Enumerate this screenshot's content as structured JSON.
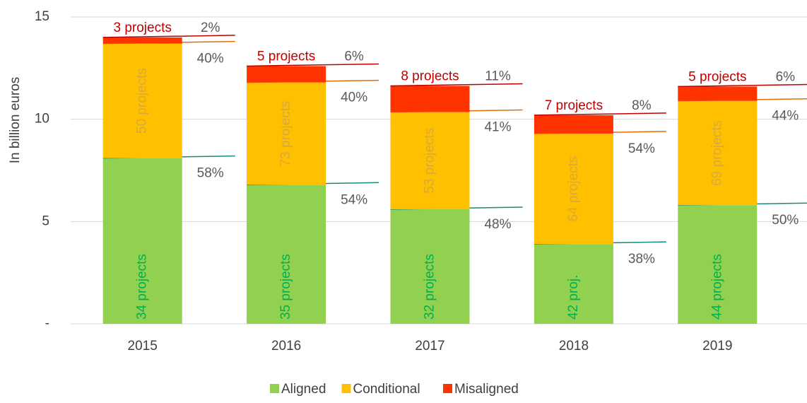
{
  "chart_data": {
    "type": "stacked_bar",
    "y_axis_label": "In billion euros",
    "categories": [
      "2015",
      "2016",
      "2017",
      "2018",
      "2019"
    ],
    "series": [
      {
        "name": "Aligned",
        "color": "#92d050",
        "values": [
          8.1,
          6.8,
          5.6,
          3.9,
          5.8
        ],
        "project_labels": [
          "34 projects",
          "35 projects",
          "32 projects",
          "42 proj.",
          "44 projects"
        ],
        "share_labels": [
          "58%",
          "54%",
          "48%",
          "38%",
          "50%"
        ]
      },
      {
        "name": "Conditional",
        "color": "#ffc000",
        "values": [
          5.6,
          5.0,
          4.75,
          5.4,
          5.1
        ],
        "project_labels": [
          "50 projects",
          "73 projects",
          "53 projects",
          "64 projects",
          "69 projects"
        ],
        "share_labels": [
          "40%",
          "40%",
          "41%",
          "54%",
          "44%"
        ]
      },
      {
        "name": "Misaligned",
        "color": "#ff3300",
        "values": [
          0.3,
          0.8,
          1.28,
          0.9,
          0.7
        ],
        "project_labels": [
          "3 projects",
          "5 projects",
          "8 projects",
          "7 projects",
          "5 projects"
        ],
        "share_labels": [
          "2%",
          "6%",
          "11%",
          "8%",
          "6%"
        ]
      }
    ],
    "ylim": [
      0,
      15
    ],
    "yticks": [
      {
        "value": 0,
        "label": "-"
      },
      5,
      10,
      15
    ],
    "grid": true,
    "legend": "bottom"
  }
}
